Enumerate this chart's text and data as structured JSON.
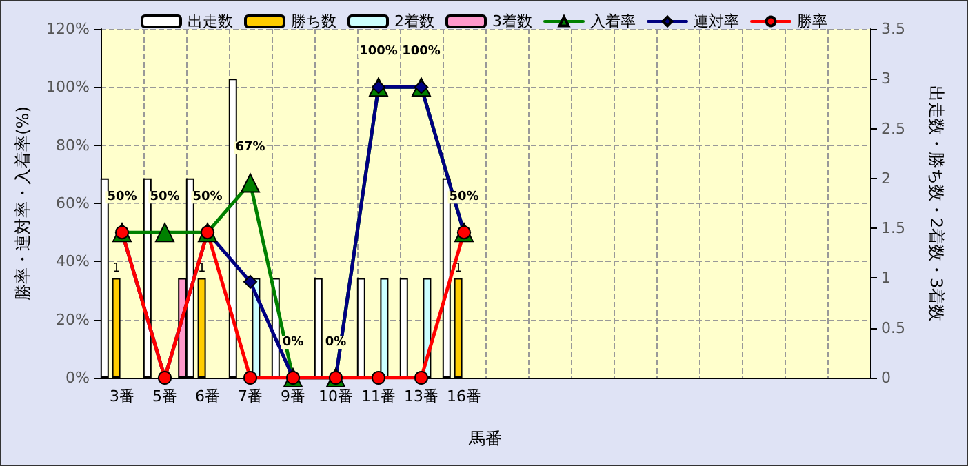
{
  "chart_data": {
    "type": "bar",
    "xlabel": "馬番",
    "ylabel": "勝率・連対率・入着率(%)",
    "y2label": "出走数・勝ち数・2着数・3着数",
    "categories": [
      "3番",
      "5番",
      "6番",
      "7番",
      "9番",
      "10番",
      "11番",
      "13番",
      "16番",
      null,
      null,
      null,
      null,
      null,
      null,
      null,
      null,
      null
    ],
    "series": [
      {
        "name": "出走数",
        "axis": "y2",
        "color": "#ffffff",
        "values": [
          2,
          2,
          2,
          3,
          1,
          1,
          1,
          1,
          2,
          null,
          null,
          null,
          null,
          null,
          null,
          null,
          null,
          null
        ]
      },
      {
        "name": "勝ち数",
        "axis": "y2",
        "color": "#ffcc00",
        "values": [
          1,
          0,
          1,
          0,
          0,
          0,
          0,
          0,
          1,
          null,
          null,
          null,
          null,
          null,
          null,
          null,
          null,
          null
        ],
        "value_labels": [
          "1",
          null,
          "1",
          null,
          null,
          null,
          null,
          null,
          "1",
          null,
          null,
          null,
          null,
          null,
          null,
          null,
          null,
          null
        ]
      },
      {
        "name": "2着数",
        "axis": "y2",
        "color": "#ccffff",
        "values": [
          0,
          0,
          0,
          1,
          0,
          0,
          1,
          1,
          0,
          null,
          null,
          null,
          null,
          null,
          null,
          null,
          null,
          null
        ]
      },
      {
        "name": "3着数",
        "axis": "y2",
        "color": "#ff99cc",
        "values": [
          0,
          1,
          0,
          0,
          0,
          0,
          0,
          0,
          0,
          null,
          null,
          null,
          null,
          null,
          null,
          null,
          null,
          null
        ]
      },
      {
        "name": "入着率",
        "type": "line",
        "marker": "triangle",
        "color": "#008000",
        "values": [
          50,
          50,
          50,
          67,
          0,
          0,
          100,
          100,
          50,
          null,
          null,
          null,
          null,
          null,
          null,
          null,
          null,
          null
        ],
        "value_labels": [
          "50%",
          "50%",
          "50%",
          "67%",
          "0%",
          "0%",
          "100%",
          "100%",
          "50%",
          null,
          null,
          null,
          null,
          null,
          null,
          null,
          null,
          null
        ]
      },
      {
        "name": "連対率",
        "type": "line",
        "marker": "diamond",
        "color": "#000080",
        "values": [
          50,
          0,
          50,
          33,
          0,
          0,
          100,
          100,
          50,
          null,
          null,
          null,
          null,
          null,
          null,
          null,
          null,
          null
        ]
      },
      {
        "name": "勝率",
        "type": "line",
        "marker": "circle",
        "color": "#ff0000",
        "values": [
          50,
          0,
          50,
          0,
          0,
          0,
          0,
          0,
          50,
          null,
          null,
          null,
          null,
          null,
          null,
          null,
          null,
          null
        ]
      }
    ],
    "ylim": [
      0,
      120
    ],
    "yticks": [
      {
        "value": 0,
        "label": "0%"
      },
      {
        "value": 20,
        "label": "20%"
      },
      {
        "value": 40,
        "label": "40%"
      },
      {
        "value": 60,
        "label": "60%"
      },
      {
        "value": 80,
        "label": "80%"
      },
      {
        "value": 100,
        "label": "100%"
      },
      {
        "value": 120,
        "label": "120%"
      }
    ],
    "y2lim": [
      0,
      3.5
    ],
    "y2ticks": [
      0,
      0.5,
      1,
      1.5,
      2,
      2.5,
      3,
      3.5
    ],
    "grid": true,
    "legend": "top",
    "line_style": "solid"
  }
}
